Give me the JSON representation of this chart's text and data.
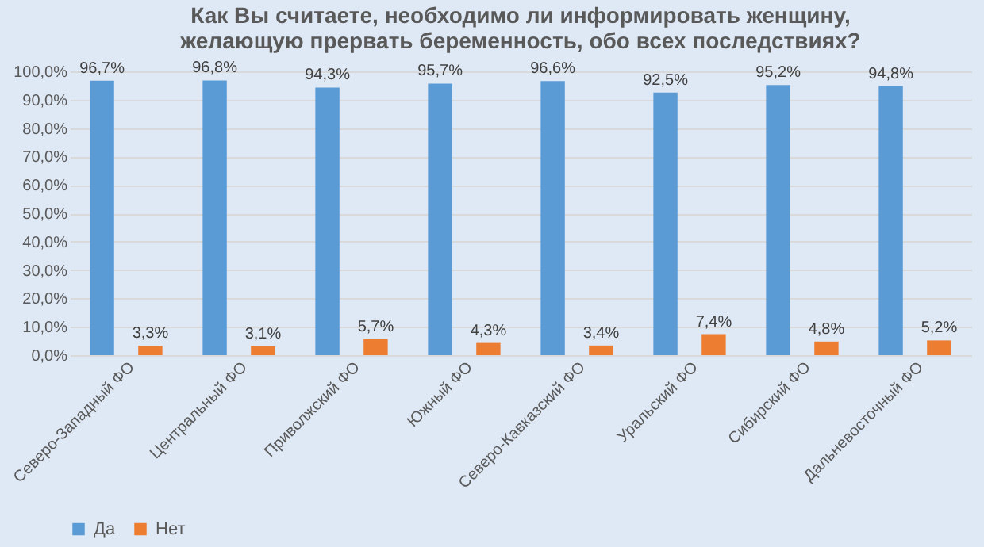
{
  "chart_data": {
    "type": "bar",
    "title": "Как Вы считаете, необходимо ли информировать женщину,\nжелающую прервать беременность, обо всех последствиях?",
    "categories": [
      "Северо-Западный ФО",
      "Центральный ФО",
      "Приволжский ФО",
      "Южный ФО",
      "Северо-Кавказский ФО",
      "Уральский ФО",
      "Сибирский ФО",
      "Дальневосточный ФО"
    ],
    "series": [
      {
        "name": "Да",
        "color": "#5b9bd5",
        "values": [
          96.7,
          96.8,
          94.3,
          95.7,
          96.6,
          92.5,
          95.2,
          94.8
        ],
        "value_labels": [
          "96,7%",
          "96,8%",
          "94,3%",
          "95,7%",
          "96,6%",
          "92,5%",
          "95,2%",
          "94,8%"
        ]
      },
      {
        "name": "Нет",
        "color": "#ed7d31",
        "values": [
          3.3,
          3.1,
          5.7,
          4.3,
          3.4,
          7.4,
          4.8,
          5.2
        ],
        "value_labels": [
          "3,3%",
          "3,1%",
          "5,7%",
          "4,3%",
          "3,4%",
          "7,4%",
          "4,8%",
          "5,2%"
        ]
      }
    ],
    "ylim": [
      0,
      100
    ],
    "yticks": [
      {
        "value": 0,
        "label": "0,0%"
      },
      {
        "value": 10,
        "label": "10,0%"
      },
      {
        "value": 20,
        "label": "20,0%"
      },
      {
        "value": 30,
        "label": "30,0%"
      },
      {
        "value": 40,
        "label": "40,0%"
      },
      {
        "value": 50,
        "label": "50,0%"
      },
      {
        "value": 60,
        "label": "60,0%"
      },
      {
        "value": 70,
        "label": "70,0%"
      },
      {
        "value": 80,
        "label": "80,0%"
      },
      {
        "value": 90,
        "label": "90,0%"
      },
      {
        "value": 100,
        "label": "100,0%"
      }
    ],
    "grid": "y",
    "legend": "bottom"
  }
}
